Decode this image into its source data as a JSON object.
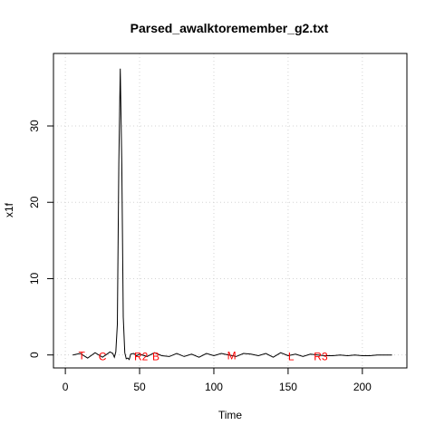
{
  "chart_data": {
    "type": "line",
    "title": "Parsed_awalktoremember_g2.txt",
    "xlabel": "Time",
    "ylabel": "x1f",
    "xlim": [
      -8,
      230
    ],
    "ylim": [
      -1.7,
      39.5
    ],
    "xticks": [
      0,
      50,
      100,
      150,
      200
    ],
    "yticks": [
      0,
      10,
      20,
      30
    ],
    "grid": true,
    "series": [
      {
        "x": [
          5,
          10,
          15,
          20,
          25,
          28,
          30,
          32,
          33,
          34,
          35,
          36,
          37,
          38,
          39,
          40,
          41,
          42,
          43,
          44,
          46,
          48,
          50,
          55,
          60,
          65,
          70,
          75,
          80,
          85,
          90,
          95,
          100,
          105,
          110,
          115,
          120,
          125,
          130,
          135,
          140,
          145,
          150,
          155,
          160,
          165,
          170,
          175,
          180,
          185,
          190,
          195,
          200,
          205,
          210,
          215,
          220
        ],
        "y": [
          0.0,
          0.2,
          -0.4,
          0.3,
          -0.3,
          0.1,
          0.4,
          0.2,
          -0.3,
          0.4,
          4.0,
          25.0,
          37.5,
          25.0,
          5.0,
          0.3,
          -0.5,
          -0.4,
          -0.6,
          0.1,
          0.2,
          -0.1,
          0.1,
          -0.2,
          0.3,
          -0.1,
          -0.2,
          0.2,
          -0.2,
          0.1,
          -0.3,
          0.2,
          -0.1,
          0.2,
          0.0,
          -0.2,
          0.2,
          0.1,
          -0.1,
          0.2,
          -0.3,
          0.3,
          -0.1,
          0.1,
          -0.2,
          0.1,
          0.0,
          -0.1,
          -0.1,
          0.0,
          -0.1,
          0.0,
          -0.1,
          -0.1,
          0.0,
          0.0,
          0.0
        ]
      }
    ],
    "annotations": [
      {
        "text": "T",
        "x": 11,
        "y": 0
      },
      {
        "text": "C",
        "x": 25,
        "y": -0.1
      },
      {
        "text": "R2",
        "x": 51,
        "y": -0.1
      },
      {
        "text": "B",
        "x": 61,
        "y": -0.1
      },
      {
        "text": "M",
        "x": 112,
        "y": 0
      },
      {
        "text": "L",
        "x": 152,
        "y": -0.1
      },
      {
        "text": "R3",
        "x": 172,
        "y": -0.1
      }
    ]
  }
}
